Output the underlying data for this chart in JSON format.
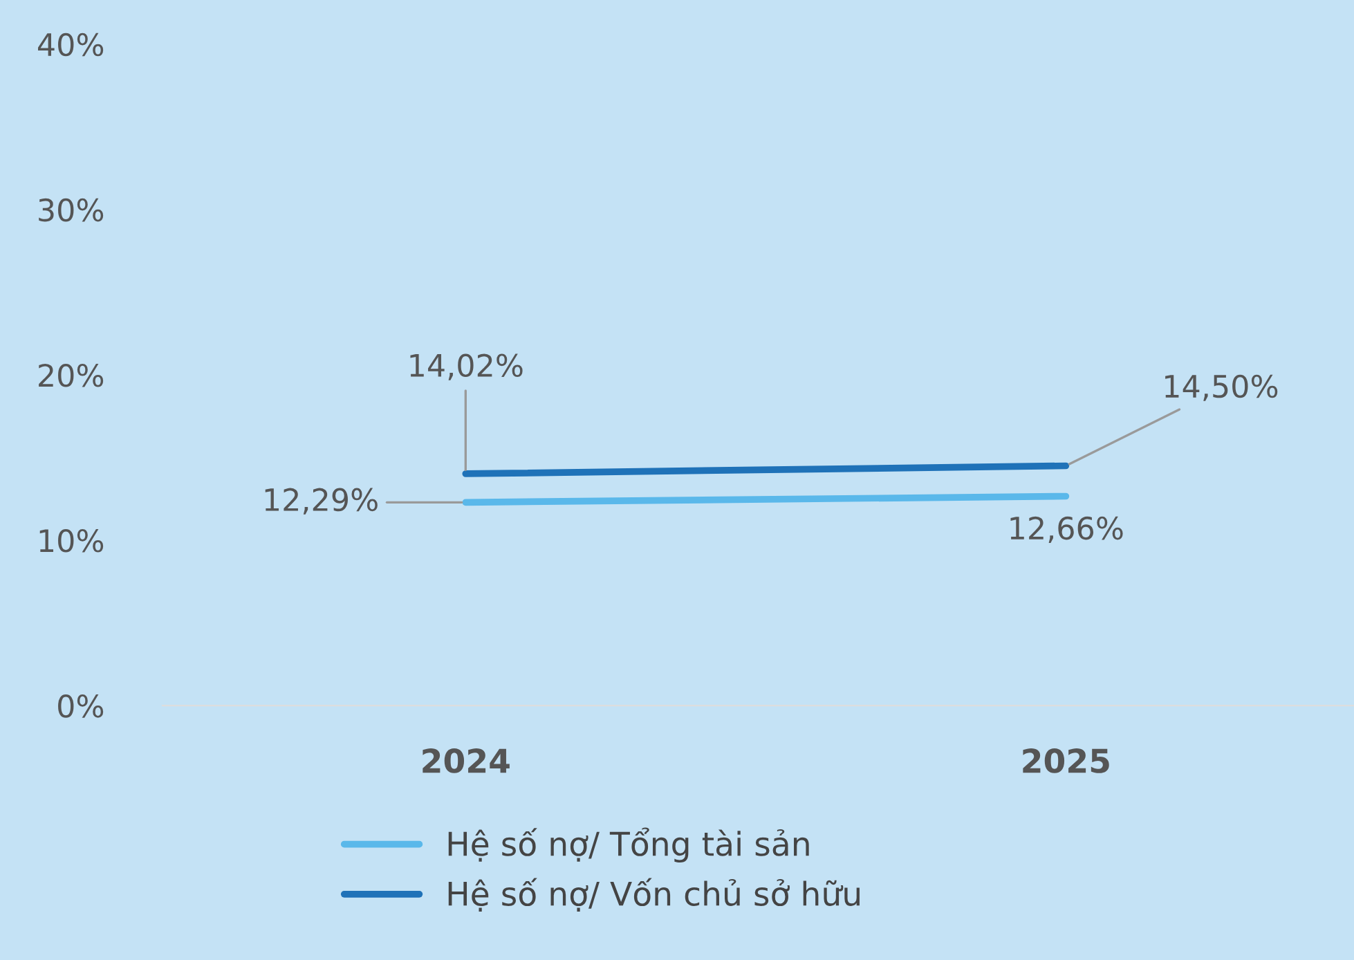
{
  "chart_data": {
    "type": "line",
    "categories": [
      "2024",
      "2025"
    ],
    "series": [
      {
        "name": "Hệ số nợ/ Tổng tài sản",
        "color": "#5ab8ea",
        "values": [
          12.29,
          12.66
        ],
        "value_labels": [
          "12,29%",
          "12,66%"
        ]
      },
      {
        "name": "Hệ số nợ/ Vốn chủ sở hữu",
        "color": "#1f72b8",
        "values": [
          14.02,
          14.5
        ],
        "value_labels": [
          "14,02%",
          "14,50%"
        ]
      }
    ],
    "ylim": [
      0,
      40
    ],
    "yticks": [
      {
        "value": 0,
        "label": "0%"
      },
      {
        "value": 10,
        "label": "10%"
      },
      {
        "value": 20,
        "label": "20%"
      },
      {
        "value": 30,
        "label": "30%"
      },
      {
        "value": 40,
        "label": "40%"
      }
    ],
    "grid": false,
    "legend": "bottom",
    "marker": "none",
    "line_style": "solid"
  }
}
